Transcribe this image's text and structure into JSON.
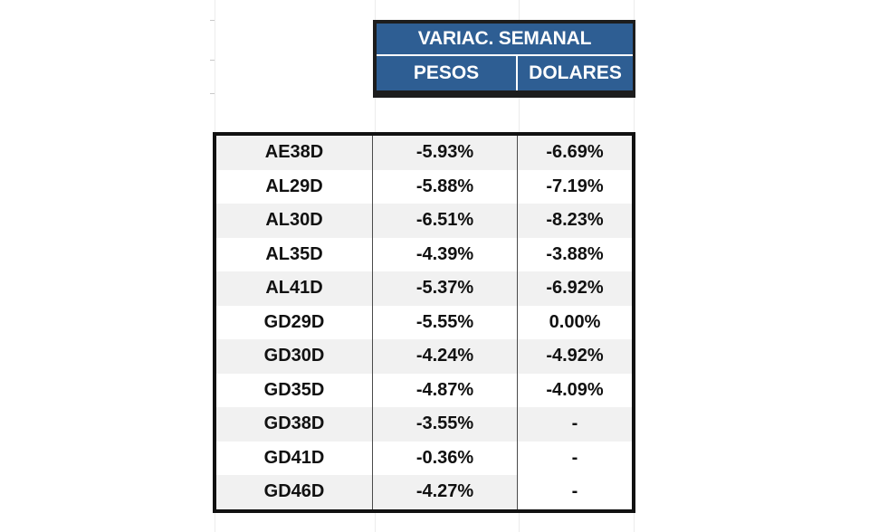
{
  "header": {
    "title": "VARIAC. SEMANAL",
    "col_pesos": "PESOS",
    "col_dolares": "DOLARES"
  },
  "rows": [
    {
      "bond": "AE38D",
      "pesos": "-5.93%",
      "dolares": "-6.69%"
    },
    {
      "bond": "AL29D",
      "pesos": "-5.88%",
      "dolares": "-7.19%"
    },
    {
      "bond": "AL30D",
      "pesos": "-6.51%",
      "dolares": "-8.23%"
    },
    {
      "bond": "AL35D",
      "pesos": "-4.39%",
      "dolares": "-3.88%"
    },
    {
      "bond": "AL41D",
      "pesos": "-5.37%",
      "dolares": "-6.92%"
    },
    {
      "bond": "GD29D",
      "pesos": "-5.55%",
      "dolares": "0.00%"
    },
    {
      "bond": "GD30D",
      "pesos": "-4.24%",
      "dolares": "-4.92%"
    },
    {
      "bond": "GD35D",
      "pesos": "-4.87%",
      "dolares": "-4.09%"
    },
    {
      "bond": "GD38D",
      "pesos": "-3.55%",
      "dolares": "-"
    },
    {
      "bond": "GD41D",
      "pesos": "-0.36%",
      "dolares": "-"
    },
    {
      "bond": "GD46D",
      "pesos": "-4.27%",
      "dolares": "-"
    }
  ],
  "colors": {
    "header_fill": "#2e5e93",
    "header_border": "#1d1d1d",
    "row_shade": "#f1f1f1",
    "table_border": "#111111"
  }
}
